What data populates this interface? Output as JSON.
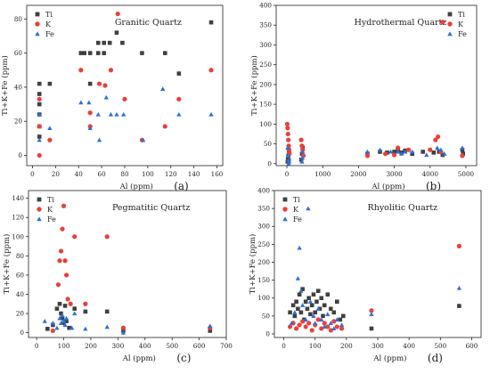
{
  "colors": {
    "Ti": "#404040",
    "K": "#e8413a",
    "Fe": "#2f6fd6",
    "axis": "#222222"
  },
  "chart_data": [
    {
      "type": "scatter",
      "title": "Granitic Quartz",
      "panel_label": "(a)",
      "xlabel": "Al (ppm)",
      "ylabel": "Ti+K+Fe (ppm)",
      "xlim": [
        -5,
        165
      ],
      "ylim": [
        -6,
        88
      ],
      "xticks": [
        "0",
        "20",
        "40",
        "60",
        "80",
        "100",
        "120",
        "140",
        "160"
      ],
      "xtick_values": [
        0,
        20,
        40,
        60,
        80,
        100,
        120,
        140,
        160
      ],
      "yticks": [
        "0",
        "20",
        "40",
        "60",
        "80"
      ],
      "ytick_values": [
        0,
        20,
        40,
        60,
        80
      ],
      "legend_position": "top-left",
      "series": [
        {
          "name": "Ti",
          "marker": "square",
          "points": [
            [
              6,
              42
            ],
            [
              6,
              36
            ],
            [
              6,
              30
            ],
            [
              6,
              24
            ],
            [
              6,
              17
            ],
            [
              6,
              11
            ],
            [
              15,
              42
            ],
            [
              42,
              60
            ],
            [
              45,
              60
            ],
            [
              50,
              60
            ],
            [
              50,
              42
            ],
            [
              57,
              60
            ],
            [
              57,
              66
            ],
            [
              62,
              60
            ],
            [
              62,
              66
            ],
            [
              67,
              66
            ],
            [
              73,
              72
            ],
            [
              78,
              66
            ],
            [
              95,
              60
            ],
            [
              115,
              60
            ],
            [
              127,
              48
            ],
            [
              155,
              78
            ]
          ]
        },
        {
          "name": "K",
          "marker": "circle",
          "points": [
            [
              6,
              33
            ],
            [
              6,
              17
            ],
            [
              6,
              0
            ],
            [
              15,
              9
            ],
            [
              42,
              50
            ],
            [
              50,
              25
            ],
            [
              50,
              17
            ],
            [
              58,
              42
            ],
            [
              63,
              41
            ],
            [
              68,
              50
            ],
            [
              74,
              83
            ],
            [
              80,
              33
            ],
            [
              95,
              9
            ],
            [
              115,
              17
            ],
            [
              127,
              33
            ],
            [
              155,
              50
            ]
          ]
        },
        {
          "name": "Fe",
          "marker": "triangle",
          "points": [
            [
              6,
              24
            ],
            [
              6,
              9
            ],
            [
              15,
              16
            ],
            [
              42,
              31
            ],
            [
              49,
              31
            ],
            [
              50,
              16
            ],
            [
              57,
              24
            ],
            [
              58,
              9
            ],
            [
              64,
              34
            ],
            [
              68,
              24
            ],
            [
              73,
              24
            ],
            [
              79,
              24
            ],
            [
              96,
              9
            ],
            [
              113,
              39
            ],
            [
              127,
              24
            ],
            [
              155,
              24
            ]
          ]
        }
      ]
    },
    {
      "type": "scatter",
      "title": "Hydrothermal Quartz",
      "panel_label": "(b)",
      "xlabel": "Al (ppm)",
      "ylabel": "Ti+K+Fe (ppm)",
      "xlim": [
        -300,
        5300
      ],
      "ylim": [
        -5,
        400
      ],
      "xticks": [
        "0",
        "1000",
        "2000",
        "3000",
        "4000",
        "5000"
      ],
      "xtick_values": [
        0,
        1000,
        2000,
        3000,
        4000,
        5000
      ],
      "yticks": [
        "0",
        "50",
        "100",
        "150",
        "200",
        "250",
        "300",
        "350",
        "400"
      ],
      "ytick_values": [
        0,
        50,
        100,
        150,
        200,
        250,
        300,
        350,
        400
      ],
      "legend_position": "top-right",
      "series": [
        {
          "name": "Ti",
          "marker": "square",
          "points": [
            [
              20,
              5
            ],
            [
              30,
              12
            ],
            [
              40,
              20
            ],
            [
              50,
              8
            ],
            [
              60,
              30
            ],
            [
              400,
              10
            ],
            [
              420,
              25
            ],
            [
              440,
              40
            ],
            [
              2250,
              25
            ],
            [
              2600,
              30
            ],
            [
              2800,
              28
            ],
            [
              3000,
              30
            ],
            [
              3100,
              35
            ],
            [
              3200,
              28
            ],
            [
              3300,
              33
            ],
            [
              3500,
              25
            ],
            [
              3800,
              30
            ],
            [
              4100,
              28
            ],
            [
              4250,
              30
            ],
            [
              4350,
              22
            ],
            [
              4900,
              35
            ],
            [
              4920,
              25
            ]
          ]
        },
        {
          "name": "K",
          "marker": "circle",
          "points": [
            [
              10,
              100
            ],
            [
              20,
              90
            ],
            [
              30,
              75
            ],
            [
              40,
              60
            ],
            [
              50,
              45
            ],
            [
              60,
              35
            ],
            [
              70,
              25
            ],
            [
              400,
              60
            ],
            [
              420,
              45
            ],
            [
              440,
              35
            ],
            [
              460,
              20
            ],
            [
              2250,
              20
            ],
            [
              2750,
              25
            ],
            [
              3000,
              22
            ],
            [
              3100,
              40
            ],
            [
              3400,
              35
            ],
            [
              4000,
              35
            ],
            [
              4150,
              60
            ],
            [
              4220,
              68
            ],
            [
              4300,
              30
            ],
            [
              4350,
              358
            ],
            [
              4900,
              20
            ]
          ]
        },
        {
          "name": "Fe",
          "marker": "triangle",
          "points": [
            [
              20,
              40
            ],
            [
              30,
              20
            ],
            [
              40,
              10
            ],
            [
              50,
              0
            ],
            [
              60,
              5
            ],
            [
              420,
              5
            ],
            [
              430,
              15
            ],
            [
              440,
              30
            ],
            [
              2250,
              30
            ],
            [
              2600,
              35
            ],
            [
              2900,
              30
            ],
            [
              3100,
              30
            ],
            [
              3200,
              25
            ],
            [
              3300,
              30
            ],
            [
              3500,
              30
            ],
            [
              3900,
              22
            ],
            [
              4200,
              40
            ],
            [
              4300,
              35
            ],
            [
              4400,
              25
            ],
            [
              4900,
              40
            ]
          ]
        }
      ]
    },
    {
      "type": "scatter",
      "title": "Pegmatitic Quartz",
      "panel_label": "(c)",
      "xlabel": "Al (ppm)",
      "ylabel": "Ti+K+Fe (ppm)",
      "xlim": [
        -30,
        700
      ],
      "ylim": [
        -5,
        148
      ],
      "xticks": [
        "0",
        "100",
        "200",
        "300",
        "400",
        "500",
        "600",
        "700"
      ],
      "xtick_values": [
        0,
        100,
        200,
        300,
        400,
        500,
        600,
        700
      ],
      "yticks": [
        "0",
        "20",
        "40",
        "60",
        "80",
        "100",
        "120",
        "140"
      ],
      "ytick_values": [
        0,
        20,
        40,
        60,
        80,
        100,
        120,
        140
      ],
      "legend_position": "top-left",
      "series": [
        {
          "name": "Ti",
          "marker": "square",
          "points": [
            [
              40,
              4
            ],
            [
              60,
              8
            ],
            [
              75,
              25
            ],
            [
              85,
              30
            ],
            [
              90,
              20
            ],
            [
              95,
              15
            ],
            [
              100,
              10
            ],
            [
              105,
              28
            ],
            [
              110,
              12
            ],
            [
              120,
              5
            ],
            [
              140,
              25
            ],
            [
              180,
              22
            ],
            [
              260,
              22
            ],
            [
              320,
              2
            ],
            [
              640,
              2
            ]
          ]
        },
        {
          "name": "K",
          "marker": "circle",
          "points": [
            [
              60,
              2
            ],
            [
              80,
              50
            ],
            [
              85,
              75
            ],
            [
              90,
              85
            ],
            [
              95,
              108
            ],
            [
              100,
              132
            ],
            [
              105,
              75
            ],
            [
              110,
              60
            ],
            [
              115,
              35
            ],
            [
              125,
              30
            ],
            [
              140,
              100
            ],
            [
              180,
              30
            ],
            [
              260,
              100
            ],
            [
              320,
              5
            ],
            [
              640,
              5
            ]
          ]
        },
        {
          "name": "Fe",
          "marker": "triangle",
          "points": [
            [
              30,
              12
            ],
            [
              60,
              10
            ],
            [
              75,
              5
            ],
            [
              85,
              15
            ],
            [
              90,
              10
            ],
            [
              95,
              18
            ],
            [
              100,
              12
            ],
            [
              105,
              8
            ],
            [
              110,
              15
            ],
            [
              130,
              5
            ],
            [
              140,
              20
            ],
            [
              180,
              4
            ],
            [
              260,
              6
            ],
            [
              320,
              0
            ],
            [
              640,
              7
            ]
          ]
        }
      ]
    },
    {
      "type": "scatter",
      "title": "Rhyolitic Quartz",
      "panel_label": "(d)",
      "xlabel": "Al (ppm)",
      "ylabel": "Ti+K+Fe (ppm)",
      "xlim": [
        -30,
        630
      ],
      "ylim": [
        -10,
        400
      ],
      "xticks": [
        "0",
        "100",
        "200",
        "300",
        "400",
        "500",
        "600"
      ],
      "xtick_values": [
        0,
        100,
        200,
        300,
        400,
        500,
        600
      ],
      "yticks": [
        "0",
        "50",
        "100",
        "150",
        "200",
        "250",
        "300",
        "350",
        "400"
      ],
      "ytick_values": [
        0,
        50,
        100,
        150,
        200,
        250,
        300,
        350,
        400
      ],
      "legend_position": "top-left",
      "series": [
        {
          "name": "Ti",
          "marker": "square",
          "points": [
            [
              20,
              60
            ],
            [
              30,
              80
            ],
            [
              35,
              50
            ],
            [
              40,
              90
            ],
            [
              45,
              70
            ],
            [
              50,
              110
            ],
            [
              55,
              60
            ],
            [
              60,
              125
            ],
            [
              65,
              40
            ],
            [
              70,
              90
            ],
            [
              75,
              70
            ],
            [
              80,
              100
            ],
            [
              85,
              55
            ],
            [
              90,
              80
            ],
            [
              95,
              110
            ],
            [
              100,
              60
            ],
            [
              105,
              90
            ],
            [
              110,
              120
            ],
            [
              115,
              70
            ],
            [
              120,
              100
            ],
            [
              125,
              50
            ],
            [
              130,
              80
            ],
            [
              140,
              110
            ],
            [
              150,
              70
            ],
            [
              160,
              60
            ],
            [
              170,
              90
            ],
            [
              180,
              40
            ],
            [
              190,
              50
            ],
            [
              280,
              15
            ],
            [
              560,
              78
            ]
          ]
        },
        {
          "name": "K",
          "marker": "circle",
          "points": [
            [
              20,
              20
            ],
            [
              30,
              30
            ],
            [
              40,
              15
            ],
            [
              50,
              25
            ],
            [
              60,
              35
            ],
            [
              70,
              20
            ],
            [
              80,
              30
            ],
            [
              90,
              10
            ],
            [
              100,
              25
            ],
            [
              110,
              40
            ],
            [
              120,
              15
            ],
            [
              130,
              30
            ],
            [
              140,
              20
            ],
            [
              150,
              10
            ],
            [
              160,
              35
            ],
            [
              170,
              20
            ],
            [
              185,
              15
            ],
            [
              280,
              65
            ],
            [
              560,
              245
            ]
          ]
        },
        {
          "name": "Fe",
          "marker": "triangle",
          "points": [
            [
              25,
              30
            ],
            [
              35,
              60
            ],
            [
              45,
              155
            ],
            [
              50,
              240
            ],
            [
              55,
              120
            ],
            [
              60,
              80
            ],
            [
              70,
              40
            ],
            [
              78,
              350
            ],
            [
              85,
              90
            ],
            [
              95,
              50
            ],
            [
              100,
              30
            ],
            [
              110,
              70
            ],
            [
              120,
              40
            ],
            [
              130,
              20
            ],
            [
              140,
              55
            ],
            [
              150,
              30
            ],
            [
              160,
              15
            ],
            [
              170,
              40
            ],
            [
              185,
              25
            ],
            [
              280,
              55
            ],
            [
              560,
              128
            ]
          ]
        }
      ]
    }
  ]
}
